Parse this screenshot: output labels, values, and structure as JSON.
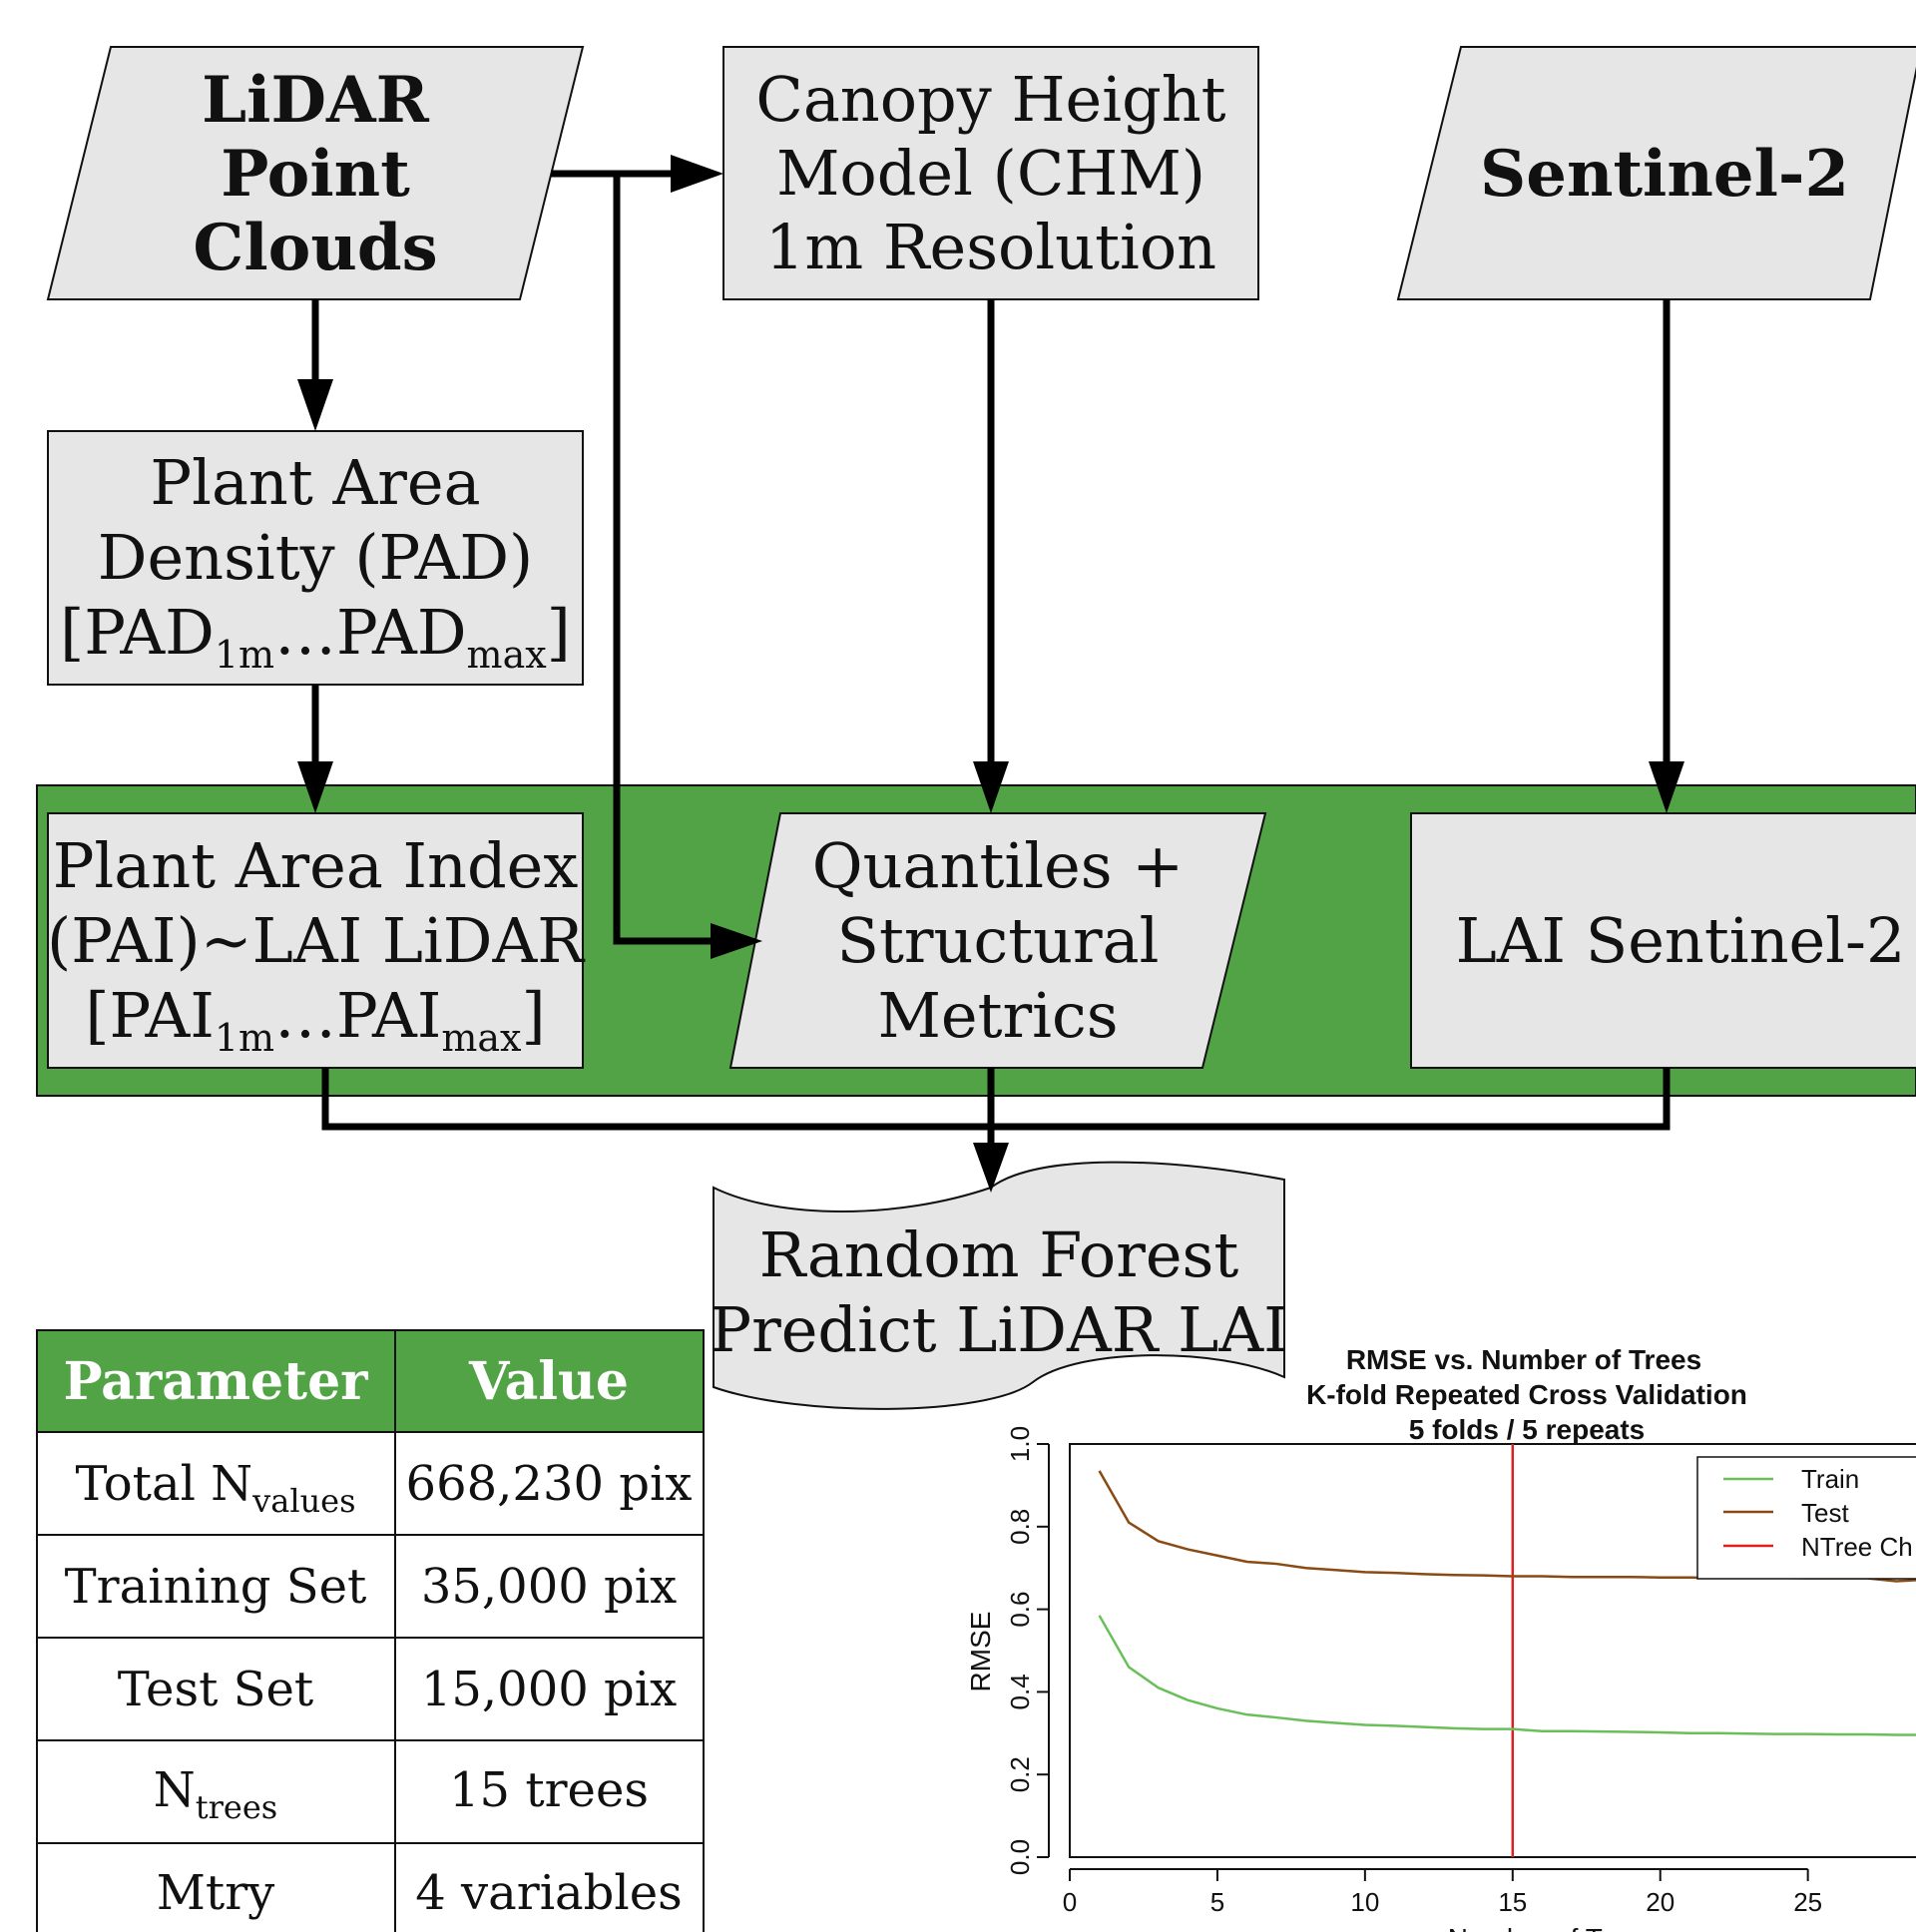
{
  "colors": {
    "box_fill": "#e6e6e6",
    "accent_green": "#52a346",
    "train_line": "#6abf5a",
    "test_line": "#8a4a12",
    "ntree_line": "#e02020"
  },
  "nodes": {
    "lidar": {
      "lines": [
        "LiDAR",
        "Point",
        "Clouds"
      ]
    },
    "chm": {
      "lines": [
        "Canopy Height",
        "Model (CHM)",
        "1m Resolution"
      ]
    },
    "sentinel": {
      "lines": [
        "Sentinel-2"
      ]
    },
    "pad": {
      "lines": [
        "Plant Area",
        "Density (PAD)"
      ],
      "formula": {
        "open": "[PAD",
        "sub1": "1m",
        "mid": "…PAD",
        "sub2": "max",
        "close": "]"
      }
    },
    "pai": {
      "lines": [
        "Plant Area Index",
        "(PAI)~LAI LiDAR"
      ],
      "formula": {
        "open": "[PAI",
        "sub1": "1m",
        "mid": "…PAI",
        "sub2": "max",
        "close": "]"
      }
    },
    "quantiles": {
      "lines": [
        "Quantiles +",
        "Structural",
        "Metrics"
      ]
    },
    "lai_s2": {
      "lines": [
        "LAI Sentinel-2"
      ]
    },
    "rf": {
      "lines": [
        "Random Forest",
        "Predict LiDAR LAI"
      ]
    }
  },
  "table": {
    "headers": [
      "Parameter",
      "Value"
    ],
    "rows": [
      {
        "param": "Total N",
        "param_sub": "values",
        "value": "668,230 pix"
      },
      {
        "param": "Training Set",
        "param_sub": "",
        "value": "35,000 pix"
      },
      {
        "param": "Test Set",
        "param_sub": "",
        "value": "15,000 pix"
      },
      {
        "param": "N",
        "param_sub": "trees",
        "value": "15 trees"
      },
      {
        "param": "Mtry",
        "param_sub": "",
        "value": "4 variables"
      }
    ]
  },
  "chart_data": {
    "type": "line",
    "title": [
      "RMSE vs. Number of Trees",
      "K-fold Repeated Cross Validation",
      "5 folds / 5 repeats"
    ],
    "xlabel": "Number of Trees",
    "ylabel": "RMSE",
    "xlim": [
      0,
      29
    ],
    "ylim": [
      0,
      1.0
    ],
    "xticks": [
      0,
      5,
      10,
      15,
      20,
      25
    ],
    "yticks": [
      "0.0",
      "0.2",
      "0.4",
      "0.6",
      "0.8",
      "1.0"
    ],
    "legend_position": "top-right",
    "legend": [
      "Train",
      "Test",
      "NTree Ch"
    ],
    "vline_x": 15,
    "series": [
      {
        "name": "Train",
        "x": [
          1,
          2,
          3,
          4,
          5,
          6,
          7,
          8,
          9,
          10,
          11,
          12,
          13,
          14,
          15,
          16,
          17,
          18,
          19,
          20,
          21,
          22,
          23,
          24,
          25,
          26,
          27,
          28,
          29
        ],
        "values": [
          0.585,
          0.46,
          0.41,
          0.38,
          0.36,
          0.345,
          0.338,
          0.33,
          0.325,
          0.32,
          0.318,
          0.315,
          0.312,
          0.31,
          0.31,
          0.305,
          0.305,
          0.304,
          0.303,
          0.302,
          0.3,
          0.3,
          0.299,
          0.298,
          0.298,
          0.297,
          0.297,
          0.296,
          0.296
        ]
      },
      {
        "name": "Test",
        "x": [
          1,
          2,
          3,
          4,
          5,
          6,
          7,
          8,
          9,
          10,
          11,
          12,
          13,
          14,
          15,
          16,
          17,
          18,
          19,
          20,
          21,
          22,
          23,
          24,
          25,
          26,
          27,
          28,
          29
        ],
        "values": [
          0.935,
          0.81,
          0.765,
          0.745,
          0.73,
          0.715,
          0.71,
          0.7,
          0.695,
          0.69,
          0.688,
          0.685,
          0.683,
          0.682,
          0.68,
          0.68,
          0.678,
          0.678,
          0.678,
          0.677,
          0.677,
          0.676,
          0.676,
          0.676,
          0.675,
          0.675,
          0.675,
          0.668,
          0.672
        ]
      }
    ]
  }
}
